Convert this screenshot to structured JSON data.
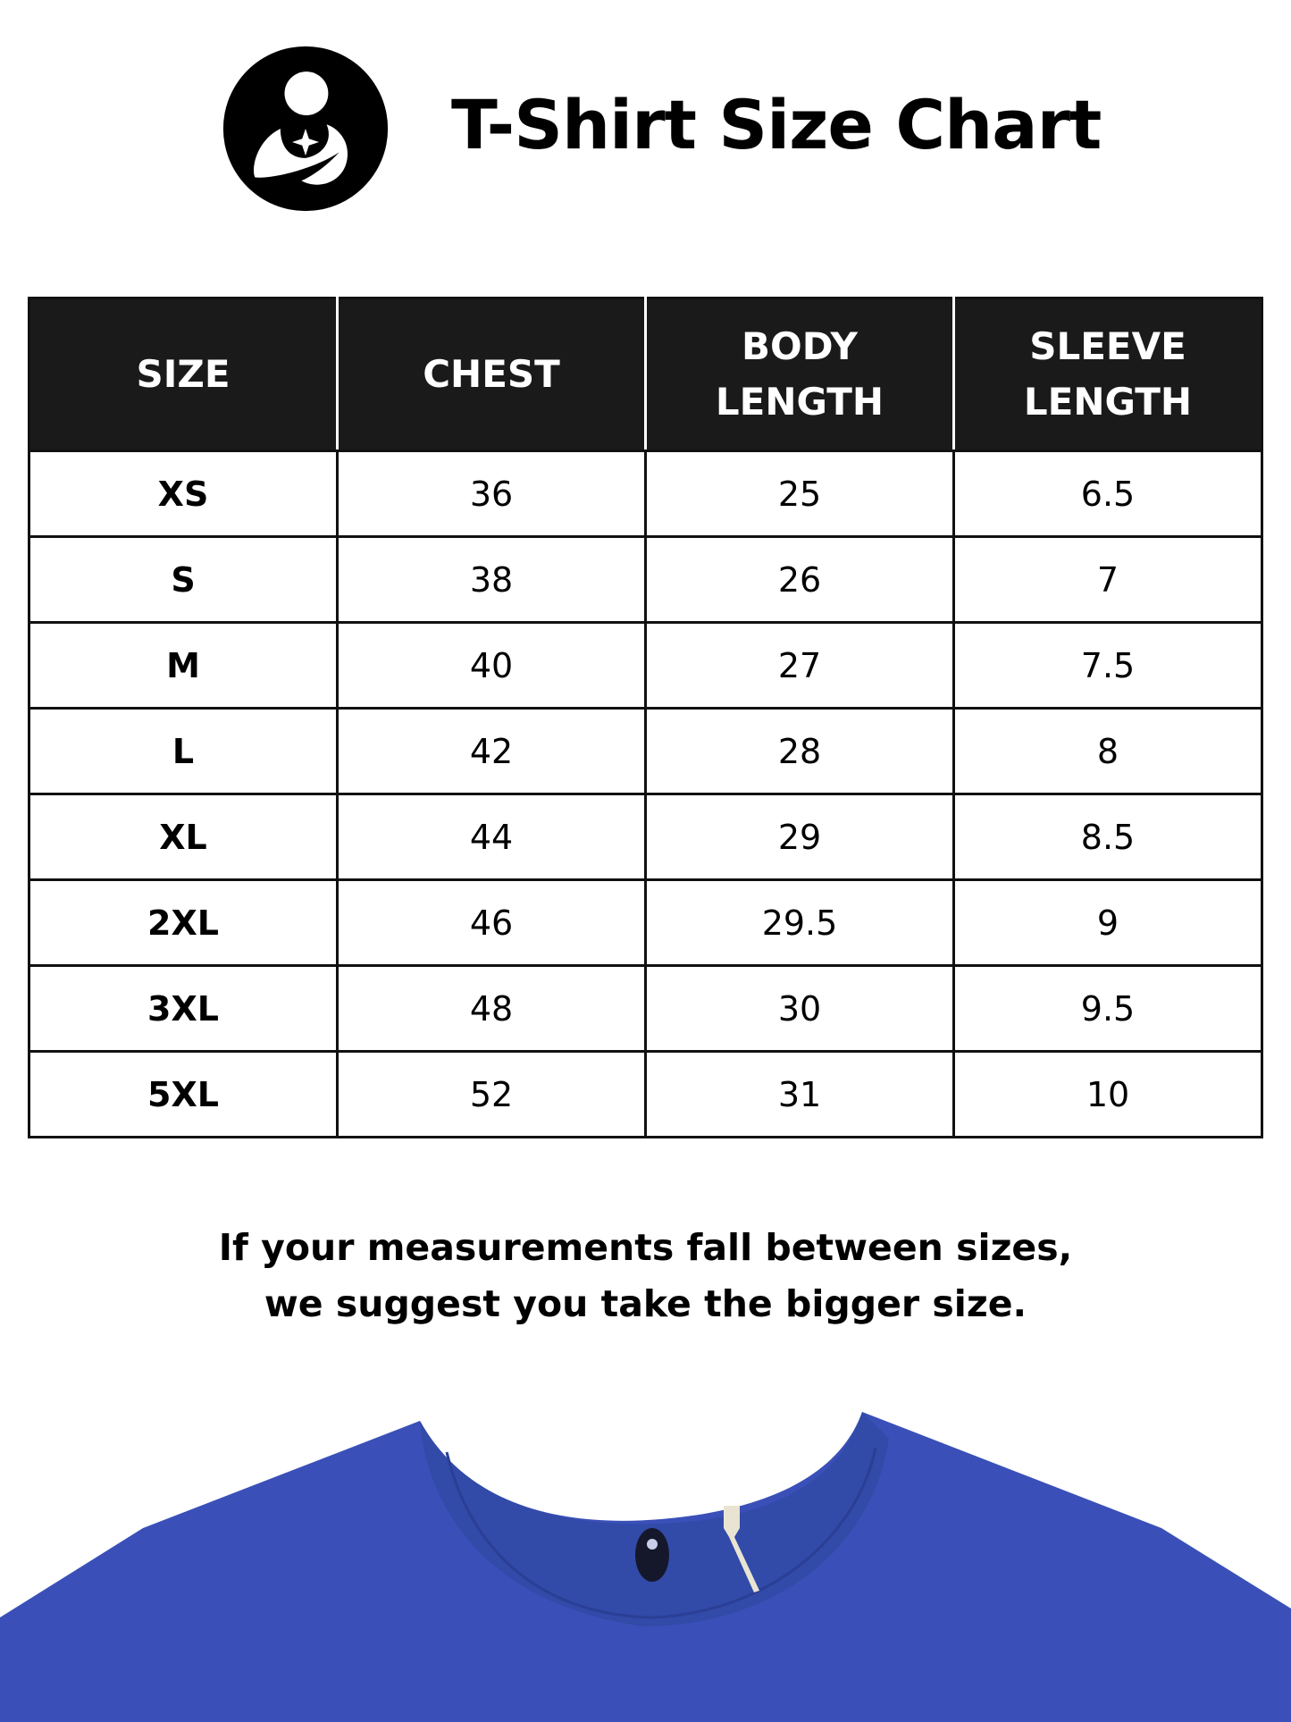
{
  "header": {
    "title": "T-Shirt Size Chart",
    "logo_icon": "mother-child-logo-icon"
  },
  "table": {
    "columns": [
      [
        "SIZE"
      ],
      [
        "CHEST"
      ],
      [
        "BODY",
        "LENGTH"
      ],
      [
        "SLEEVE",
        "LENGTH"
      ]
    ],
    "rows": [
      [
        "XS",
        "36",
        "25",
        "6.5"
      ],
      [
        "S",
        "38",
        "26",
        "7"
      ],
      [
        "M",
        "40",
        "27",
        "7.5"
      ],
      [
        "L",
        "42",
        "28",
        "8"
      ],
      [
        "XL",
        "44",
        "29",
        "8.5"
      ],
      [
        "2XL",
        "46",
        "29.5",
        "9"
      ],
      [
        "3XL",
        "48",
        "30",
        "9.5"
      ],
      [
        "5XL",
        "52",
        "31",
        "10"
      ]
    ]
  },
  "note": {
    "line1": "If your measurements fall between sizes,",
    "line2": "we suggest you take the bigger size."
  },
  "colors": {
    "header_bg": "#1a1a1a",
    "shirt": "#3a50b8"
  }
}
